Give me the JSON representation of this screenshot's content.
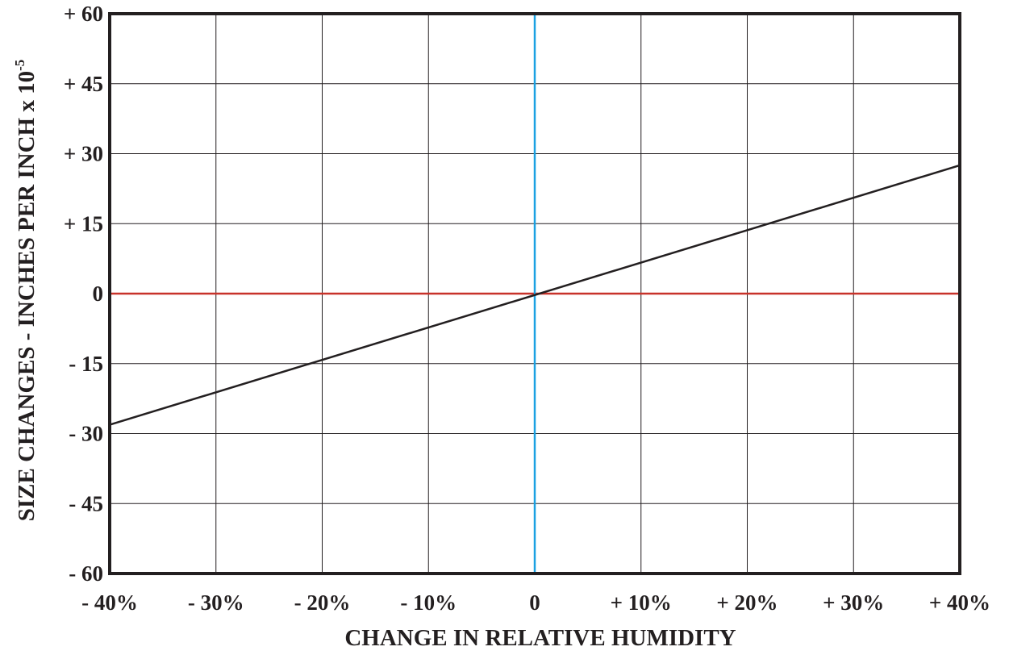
{
  "chart_data": {
    "type": "line",
    "xlabel": "CHANGE IN RELATIVE HUMIDITY",
    "ylabel": {
      "text": "SIZE CHANGES - INCHES PER INCH x 10",
      "superscript": "-5"
    },
    "x_range": [
      -40,
      40
    ],
    "ylim": [
      -60,
      60
    ],
    "x_ticks": [
      {
        "value": -40,
        "label": "- 40%"
      },
      {
        "value": -30,
        "label": "- 30%"
      },
      {
        "value": -20,
        "label": "- 20%"
      },
      {
        "value": -10,
        "label": "- 10%"
      },
      {
        "value": 0,
        "label": "0"
      },
      {
        "value": 10,
        "label": "+ 10%"
      },
      {
        "value": 20,
        "label": "+ 20%"
      },
      {
        "value": 30,
        "label": "+ 30%"
      },
      {
        "value": 40,
        "label": "+ 40%"
      }
    ],
    "y_ticks": [
      {
        "value": 60,
        "label": "+ 60"
      },
      {
        "value": 45,
        "label": "+ 45"
      },
      {
        "value": 30,
        "label": "+ 30"
      },
      {
        "value": 15,
        "label": "+ 15"
      },
      {
        "value": 0,
        "label": "0"
      },
      {
        "value": -15,
        "label": "- 15"
      },
      {
        "value": -30,
        "label": "- 30"
      },
      {
        "value": -45,
        "label": "- 45"
      },
      {
        "value": -60,
        "label": "- 60"
      }
    ],
    "grid": true,
    "series": [
      {
        "x": [
          -40,
          40
        ],
        "y": [
          -28.1,
          27.5
        ],
        "color": "#231f20"
      }
    ],
    "reference_lines": [
      {
        "orientation": "horizontal",
        "value": 0,
        "color": "#c8322a"
      },
      {
        "orientation": "vertical",
        "value": 0,
        "color": "#1ba1e2"
      }
    ]
  }
}
